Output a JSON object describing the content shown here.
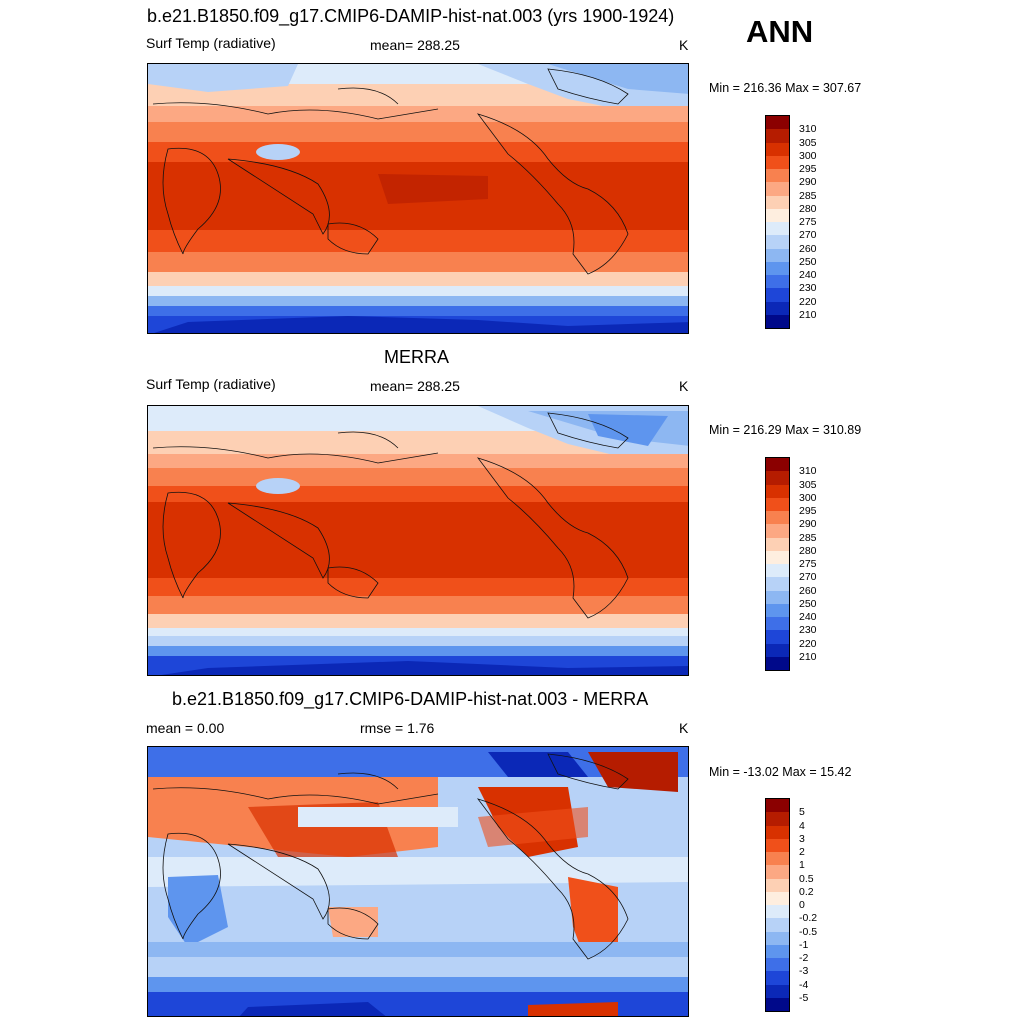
{
  "header": {
    "season": "ANN"
  },
  "panels": [
    {
      "title": "b.e21.B1850.f09_g17.CMIP6-DAMIP-hist-nat.003 (yrs 1900-1924)",
      "left_label": "Surf Temp (radiative)",
      "center_label": "mean= 288.25",
      "units": "K",
      "minmax": "Min = 216.36 Max = 307.67",
      "colorbar": {
        "levels": [
          "310",
          "305",
          "300",
          "295",
          "290",
          "285",
          "280",
          "275",
          "270",
          "260",
          "250",
          "240",
          "230",
          "220",
          "210"
        ],
        "colors": [
          "#8B0000",
          "#B51C00",
          "#D83100",
          "#F0501A",
          "#F8814F",
          "#FCA883",
          "#FDD0B4",
          "#FEEEDF",
          "#DDEBFA",
          "#B7D2F7",
          "#8DB7F2",
          "#5E95EE",
          "#3E6FE8",
          "#1E46D8",
          "#0B28B7",
          "#00098A"
        ]
      }
    },
    {
      "title": "MERRA",
      "left_label": "Surf Temp (radiative)",
      "center_label": "mean= 288.25",
      "units": "K",
      "minmax": "Min = 216.29 Max = 310.89",
      "colorbar": {
        "levels": [
          "310",
          "305",
          "300",
          "295",
          "290",
          "285",
          "280",
          "275",
          "270",
          "260",
          "250",
          "240",
          "230",
          "220",
          "210"
        ],
        "colors": [
          "#8B0000",
          "#B51C00",
          "#D83100",
          "#F0501A",
          "#F8814F",
          "#FCA883",
          "#FDD0B4",
          "#FEEEDF",
          "#DDEBFA",
          "#B7D2F7",
          "#8DB7F2",
          "#5E95EE",
          "#3E6FE8",
          "#1E46D8",
          "#0B28B7",
          "#00098A"
        ]
      }
    },
    {
      "title": "b.e21.B1850.f09_g17.CMIP6-DAMIP-hist-nat.003 - MERRA",
      "left_label": "mean =   0.00",
      "center_label": "rmse =   1.76",
      "units": "K",
      "minmax": "Min = -13.02 Max =  15.42",
      "colorbar": {
        "levels": [
          "5",
          "4",
          "3",
          "2",
          "1",
          "0.5",
          "0.2",
          "0",
          "-0.2",
          "-0.5",
          "-1",
          "-2",
          "-3",
          "-4",
          "-5"
        ],
        "colors": [
          "#8B0000",
          "#B51C00",
          "#D83100",
          "#F0501A",
          "#F8814F",
          "#FCA883",
          "#FDD0B4",
          "#FEEEDF",
          "#DDEBFA",
          "#B7D2F7",
          "#8DB7F2",
          "#5E95EE",
          "#3E6FE8",
          "#1E46D8",
          "#0B28B7",
          "#00098A"
        ]
      }
    }
  ]
}
